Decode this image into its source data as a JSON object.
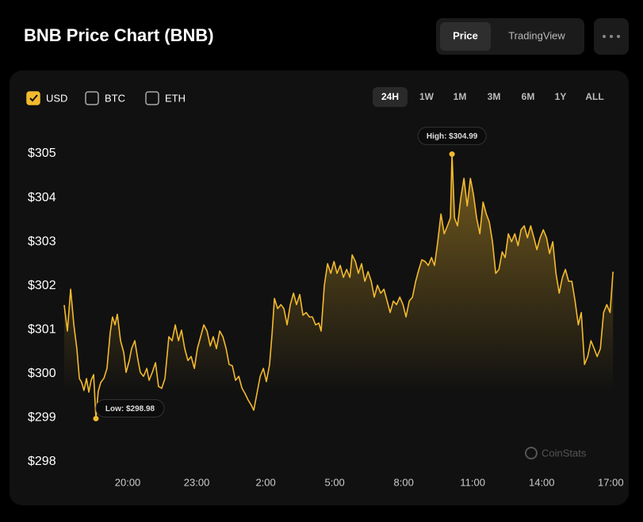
{
  "header": {
    "title": "BNB Price Chart (BNB)",
    "tabs": [
      "Price",
      "TradingView"
    ],
    "active_tab": "Price"
  },
  "currencies": {
    "options": [
      "USD",
      "BTC",
      "ETH"
    ],
    "checked": [
      true,
      false,
      false
    ]
  },
  "ranges": {
    "options": [
      "24H",
      "1W",
      "1M",
      "3M",
      "6M",
      "1Y",
      "ALL"
    ],
    "active": "24H"
  },
  "watermark": "CoinStats",
  "chart_data": {
    "type": "line",
    "color": "#f3ba2f",
    "high_label": "High: $304.99",
    "low_label": "Low: $298.98",
    "x": [
      17.24,
      17.38,
      17.52,
      17.66,
      17.79,
      17.9,
      18.0,
      18.1,
      18.21,
      18.31,
      18.41,
      18.52,
      18.62,
      18.72,
      18.83,
      18.97,
      19.1,
      19.24,
      19.34,
      19.45,
      19.55,
      19.69,
      19.83,
      19.93,
      20.07,
      20.17,
      20.31,
      20.45,
      20.55,
      20.69,
      20.83,
      20.93,
      21.07,
      21.21,
      21.34,
      21.48,
      21.62,
      21.79,
      21.93,
      22.07,
      22.21,
      22.34,
      22.48,
      22.62,
      22.76,
      22.9,
      23.03,
      23.17,
      23.31,
      23.45,
      23.59,
      23.72,
      23.86,
      24.0,
      24.14,
      24.28,
      24.41,
      24.55,
      24.69,
      24.83,
      24.97,
      25.1,
      25.24,
      25.38,
      25.48,
      25.62,
      25.76,
      25.9,
      26.03,
      26.17,
      26.28,
      26.38,
      26.52,
      26.66,
      26.79,
      26.93,
      27.07,
      27.21,
      27.34,
      27.48,
      27.62,
      27.76,
      27.9,
      28.03,
      28.17,
      28.31,
      28.41,
      28.55,
      28.69,
      28.83,
      28.97,
      29.1,
      29.24,
      29.38,
      29.52,
      29.66,
      29.76,
      29.9,
      30.03,
      30.17,
      30.31,
      30.45,
      30.59,
      30.72,
      30.86,
      31.0,
      31.14,
      31.28,
      31.41,
      31.55,
      31.69,
      31.83,
      31.97,
      32.1,
      32.24,
      32.38,
      32.52,
      32.66,
      32.79,
      32.93,
      33.07,
      33.21,
      33.34,
      33.48,
      33.62,
      33.76,
      33.9,
      34.03,
      34.1,
      34.21,
      34.34,
      34.48,
      34.62,
      34.76,
      34.9,
      35.03,
      35.17,
      35.31,
      35.45,
      35.59,
      35.72,
      35.86,
      36.0,
      36.14,
      36.28,
      36.41,
      36.55,
      36.69,
      36.83,
      36.97,
      37.1,
      37.24,
      37.38,
      37.52,
      37.66,
      37.79,
      37.93,
      38.07,
      38.21,
      38.34,
      38.48,
      38.62,
      38.76,
      38.9,
      39.03,
      39.17,
      39.31,
      39.45,
      39.59,
      39.72,
      39.86,
      40.0,
      40.14,
      40.28,
      40.41,
      40.55,
      40.69,
      40.83,
      40.97,
      41.1
    ],
    "values": [
      301.56,
      300.97,
      301.92,
      301.11,
      300.57,
      299.89,
      299.8,
      299.62,
      299.89,
      299.58,
      299.85,
      299.98,
      298.98,
      299.6,
      299.8,
      299.9,
      300.12,
      300.93,
      301.29,
      301.11,
      301.35,
      300.75,
      300.48,
      300.03,
      300.3,
      300.57,
      300.75,
      300.3,
      300.03,
      299.94,
      300.12,
      299.85,
      300.03,
      300.25,
      299.71,
      299.67,
      299.89,
      300.84,
      300.75,
      301.11,
      300.75,
      300.99,
      300.57,
      300.3,
      300.39,
      300.12,
      300.57,
      300.84,
      301.11,
      300.97,
      300.63,
      300.84,
      300.57,
      300.97,
      300.84,
      300.57,
      300.21,
      300.18,
      299.85,
      299.94,
      299.67,
      299.55,
      299.4,
      299.28,
      299.17,
      299.55,
      299.94,
      300.12,
      299.82,
      300.21,
      300.93,
      301.71,
      301.48,
      301.57,
      301.48,
      301.11,
      301.57,
      301.83,
      301.57,
      301.8,
      301.33,
      301.39,
      301.29,
      301.29,
      301.11,
      301.15,
      300.97,
      302.01,
      302.5,
      302.28,
      302.55,
      302.28,
      302.46,
      302.19,
      302.37,
      302.19,
      302.7,
      302.55,
      302.28,
      302.5,
      302.1,
      302.32,
      302.1,
      301.74,
      302.01,
      301.83,
      301.92,
      301.65,
      301.39,
      301.65,
      301.57,
      301.74,
      301.57,
      301.29,
      301.65,
      301.74,
      302.1,
      302.37,
      302.59,
      302.55,
      302.46,
      302.64,
      302.46,
      303.0,
      303.63,
      303.18,
      303.36,
      303.54,
      304.99,
      303.54,
      303.36,
      303.99,
      304.44,
      303.81,
      304.44,
      304.08,
      303.54,
      303.18,
      303.9,
      303.63,
      303.45,
      303.0,
      302.28,
      302.37,
      302.77,
      302.64,
      303.18,
      303.0,
      303.18,
      302.91,
      303.27,
      303.36,
      303.09,
      303.36,
      303.09,
      302.82,
      303.09,
      303.27,
      303.09,
      302.73,
      303.0,
      302.28,
      301.83,
      302.19,
      302.37,
      302.1,
      302.1,
      301.65,
      301.11,
      301.39,
      300.21,
      300.39,
      300.75,
      300.57,
      300.39,
      300.57,
      301.39,
      301.57,
      301.39,
      302.32
    ],
    "xlim": [
      17.0,
      41.3
    ],
    "xticks": [
      {
        "value": 20,
        "label": "20:00"
      },
      {
        "value": 23,
        "label": "23:00"
      },
      {
        "value": 26,
        "label": "2:00"
      },
      {
        "value": 29,
        "label": "5:00"
      },
      {
        "value": 32,
        "label": "8:00"
      },
      {
        "value": 35,
        "label": "11:00"
      },
      {
        "value": 38,
        "label": "14:00"
      },
      {
        "value": 41,
        "label": "17:00"
      }
    ],
    "ylim": [
      297.8,
      305.4
    ],
    "yticks": [
      {
        "value": 298,
        "label": "$298"
      },
      {
        "value": 299,
        "label": "$299"
      },
      {
        "value": 300,
        "label": "$300"
      },
      {
        "value": 301,
        "label": "$301"
      },
      {
        "value": 302,
        "label": "$302"
      },
      {
        "value": 303,
        "label": "$303"
      },
      {
        "value": 304,
        "label": "$304"
      },
      {
        "value": 305,
        "label": "$305"
      }
    ],
    "grid": false
  }
}
